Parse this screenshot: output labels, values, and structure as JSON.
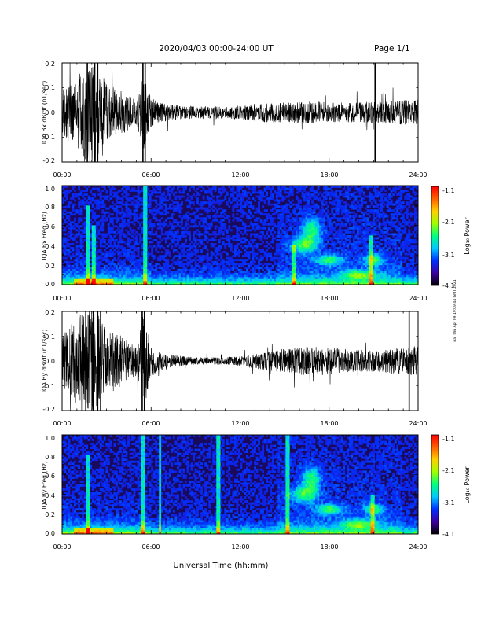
{
  "header": {
    "title": "2020/04/03  00:00-24:00 UT",
    "page": "Page 1/1"
  },
  "footer": {
    "xlabel": "Universal Time (hh:mm)"
  },
  "side_stamp": "nal Thu Apr 09 19:09:44 GMT 2021",
  "colorbar": {
    "label": "Log₁₀ Power",
    "ticks": [
      "-1.1",
      "-2.1",
      "-3.1",
      "-4.1"
    ],
    "range": [
      -4.1,
      -1.1
    ],
    "colors": [
      "#000000",
      "#3c00a0",
      "#0030ff",
      "#00c8ff",
      "#00ff80",
      "#a0ff00",
      "#ffd000",
      "#ff6000",
      "#ff0000"
    ]
  },
  "chart_data": [
    {
      "type": "line",
      "ylabel": "IQA Bx dB/dt (nT/sec)",
      "x_ticks": [
        "00:00",
        "06:00",
        "12:00",
        "18:00",
        "24:00"
      ],
      "y_ticks": [
        "0.2",
        "0.1",
        "0.0",
        "-0.1",
        "-0.2"
      ],
      "xlim": [
        0,
        24
      ],
      "ylim": [
        -0.2,
        0.2
      ],
      "envelope_hours": [
        0,
        0.5,
        1,
        1.5,
        2,
        2.5,
        3,
        3.5,
        4,
        4.5,
        5,
        5.5,
        6,
        6.5,
        7,
        8,
        9,
        10,
        11,
        12,
        13,
        14,
        15,
        16,
        17,
        18,
        19,
        20,
        21,
        22,
        23,
        24
      ],
      "envelope_amplitude": [
        0.1,
        0.12,
        0.15,
        0.2,
        0.2,
        0.17,
        0.12,
        0.1,
        0.09,
        0.07,
        0.05,
        0.15,
        0.06,
        0.04,
        0.035,
        0.03,
        0.025,
        0.025,
        0.025,
        0.03,
        0.035,
        0.04,
        0.04,
        0.045,
        0.045,
        0.04,
        0.04,
        0.04,
        0.045,
        0.045,
        0.05,
        0.05
      ]
    },
    {
      "type": "heatmap",
      "ylabel": "IQA Bx Freq (Hz)",
      "x_ticks": [
        "00:00",
        "06:00",
        "12:00",
        "18:00",
        "24:00"
      ],
      "y_ticks": [
        "1.0",
        "0.8",
        "0.6",
        "0.4",
        "0.2",
        "0.0"
      ],
      "xlim": [
        0,
        24
      ],
      "ylim": [
        0,
        1
      ],
      "zlim": [
        -4.1,
        -1.1
      ]
    },
    {
      "type": "line",
      "ylabel": "IQA By dB/dt (nT/sec)",
      "x_ticks": [
        "00:00",
        "06:00",
        "12:00",
        "18:00",
        "24:00"
      ],
      "y_ticks": [
        "0.2",
        "0.1",
        "0.0",
        "-0.1",
        "-0.2"
      ],
      "xlim": [
        0,
        24
      ],
      "ylim": [
        -0.2,
        0.2
      ],
      "envelope_hours": [
        0,
        0.5,
        1,
        1.5,
        2,
        2.5,
        3,
        3.5,
        4,
        4.5,
        5,
        5.5,
        6,
        6.5,
        7,
        8,
        9,
        10,
        11,
        12,
        13,
        14,
        15,
        16,
        17,
        18,
        19,
        20,
        21,
        22,
        23,
        24
      ],
      "envelope_amplitude": [
        0.1,
        0.14,
        0.18,
        0.2,
        0.2,
        0.18,
        0.14,
        0.12,
        0.1,
        0.08,
        0.06,
        0.2,
        0.07,
        0.04,
        0.03,
        0.02,
        0.015,
        0.015,
        0.015,
        0.02,
        0.03,
        0.04,
        0.05,
        0.055,
        0.06,
        0.055,
        0.05,
        0.045,
        0.045,
        0.05,
        0.055,
        0.06
      ]
    },
    {
      "type": "heatmap",
      "ylabel": "IQA By Freq (Hz)",
      "x_ticks": [
        "00:00",
        "06:00",
        "12:00",
        "18:00",
        "24:00"
      ],
      "y_ticks": [
        "1.0",
        "0.8",
        "0.6",
        "0.4",
        "0.2",
        "0.0"
      ],
      "xlim": [
        0,
        24
      ],
      "ylim": [
        0,
        1
      ],
      "zlim": [
        -4.1,
        -1.1
      ]
    }
  ]
}
